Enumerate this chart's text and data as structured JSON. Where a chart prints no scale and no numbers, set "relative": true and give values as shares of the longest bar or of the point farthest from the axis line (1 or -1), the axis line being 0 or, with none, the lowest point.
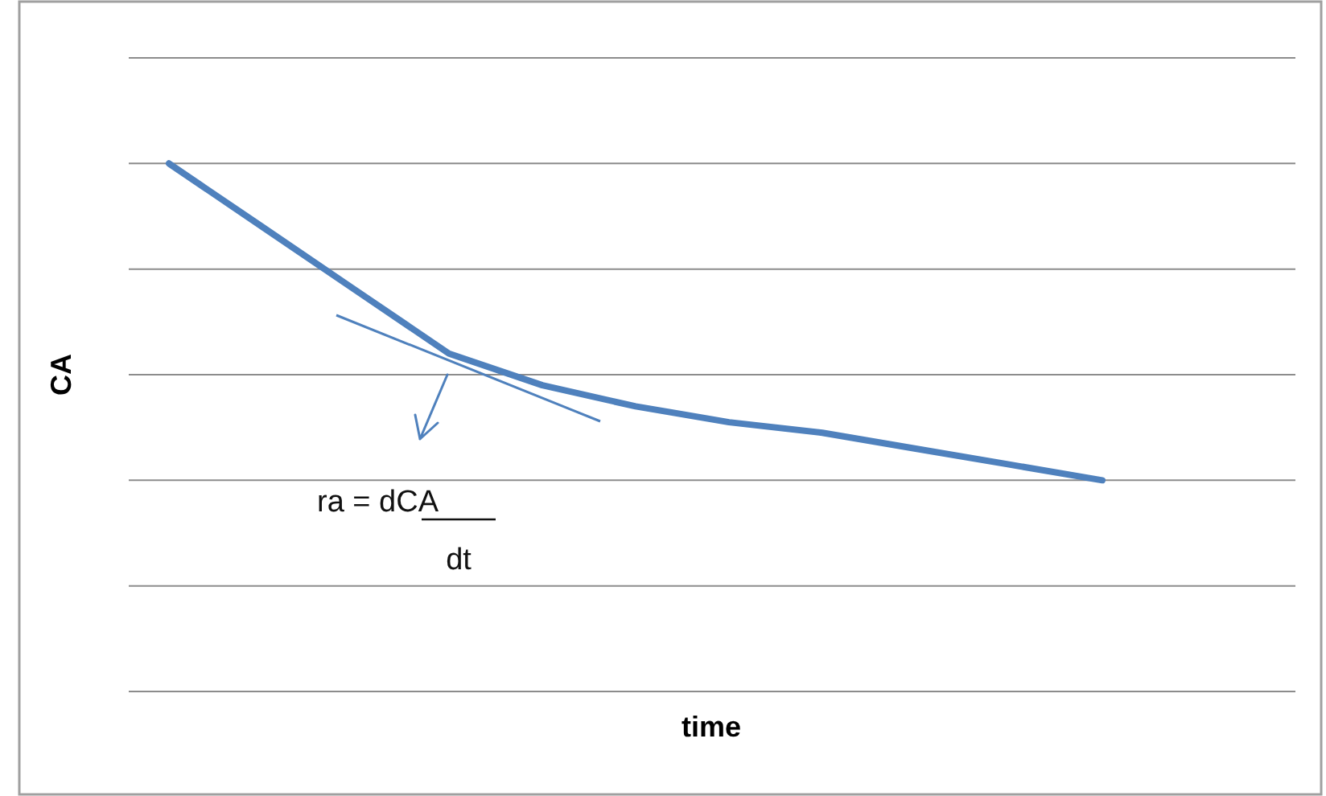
{
  "chart_data": {
    "type": "line",
    "relative": true,
    "xlabel": "time",
    "ylabel": "CA",
    "grid": "y",
    "marker": "none",
    "line_style": "solid",
    "categories": [
      null,
      null,
      null,
      null,
      null,
      null,
      null,
      null,
      null,
      null,
      null,
      null,
      null
    ],
    "series": [
      {
        "color": "#4f81bd",
        "values": [
          1,
          0.88,
          0.76,
          0.64,
          0.58,
          0.54,
          0.51,
          0.49,
          0.46,
          0.43,
          0.4,
          null,
          null
        ]
      }
    ],
    "annotations": [
      "ra = dCA",
      "dt"
    ]
  }
}
